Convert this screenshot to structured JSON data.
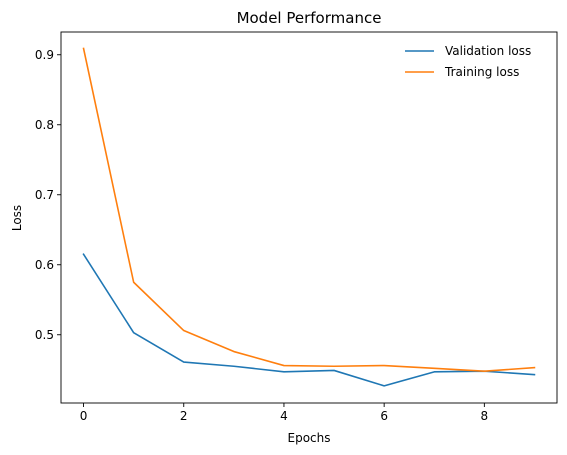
{
  "chart_data": {
    "type": "line",
    "title": "Model Performance",
    "xlabel": "Epochs",
    "ylabel": "Loss",
    "x": [
      0,
      1,
      2,
      3,
      4,
      5,
      6,
      7,
      8,
      9
    ],
    "xlim": [
      -0.45,
      9.45
    ],
    "ylim": [
      0.4025,
      0.9325
    ],
    "xticks": [
      0,
      2,
      4,
      6,
      8
    ],
    "yticks": [
      0.5,
      0.6,
      0.7,
      0.8,
      0.9
    ],
    "xtick_labels": [
      "0",
      "2",
      "4",
      "6",
      "8"
    ],
    "ytick_labels": [
      "0.5",
      "0.6",
      "0.7",
      "0.8",
      "0.9"
    ],
    "grid": false,
    "legend_position": "top-right",
    "series": [
      {
        "name": "Validation loss",
        "color": "#1f77b4",
        "values": [
          0.615,
          0.503,
          0.461,
          0.455,
          0.447,
          0.449,
          0.427,
          0.447,
          0.448,
          0.443
        ]
      },
      {
        "name": "Training loss",
        "color": "#ff7f0e",
        "values": [
          0.909,
          0.575,
          0.506,
          0.476,
          0.456,
          0.455,
          0.456,
          0.452,
          0.448,
          0.453
        ]
      }
    ]
  }
}
